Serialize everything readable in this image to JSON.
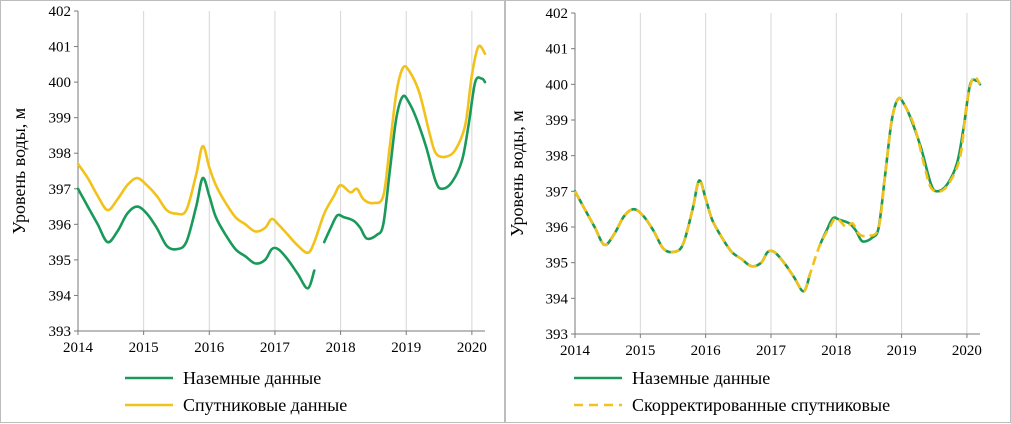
{
  "colors": {
    "ground": "#1a9a5a",
    "satellite": "#f2c21b",
    "corrected": "#f2c21b"
  },
  "chart_data": [
    {
      "type": "line",
      "ylabel": "Уровень воды, м",
      "xlabel": "",
      "xlim": [
        2014,
        2020.2
      ],
      "ylim": [
        393,
        402
      ],
      "x_ticks": [
        "2014",
        "2015",
        "2016",
        "2017",
        "2018",
        "2019",
        "2020"
      ],
      "y_ticks": [
        "393",
        "394",
        "395",
        "396",
        "397",
        "398",
        "399",
        "400",
        "401",
        "402"
      ],
      "grid": "vertical",
      "legend_position": "bottom",
      "series": [
        {
          "name": "Наземные данные",
          "color": "#1a9a5a",
          "dash": false,
          "segments": [
            [
              [
                2014.0,
                397.0
              ],
              [
                2014.15,
                396.5
              ],
              [
                2014.3,
                396.0
              ],
              [
                2014.45,
                395.5
              ],
              [
                2014.6,
                395.8
              ],
              [
                2014.75,
                396.3
              ],
              [
                2014.9,
                396.5
              ],
              [
                2015.05,
                396.3
              ],
              [
                2015.2,
                395.9
              ],
              [
                2015.35,
                395.4
              ],
              [
                2015.5,
                395.3
              ],
              [
                2015.65,
                395.5
              ],
              [
                2015.8,
                396.5
              ],
              [
                2015.9,
                397.3
              ],
              [
                2016.0,
                396.8
              ],
              [
                2016.1,
                396.2
              ],
              [
                2016.25,
                395.7
              ],
              [
                2016.4,
                395.3
              ],
              [
                2016.55,
                395.1
              ],
              [
                2016.7,
                394.9
              ],
              [
                2016.85,
                395.0
              ],
              [
                2016.95,
                395.3
              ],
              [
                2017.05,
                395.3
              ],
              [
                2017.2,
                395.0
              ],
              [
                2017.35,
                394.6
              ],
              [
                2017.5,
                394.2
              ],
              [
                2017.6,
                394.7
              ]
            ],
            [
              [
                2017.75,
                395.5
              ],
              [
                2017.85,
                395.9
              ],
              [
                2017.95,
                396.25
              ],
              [
                2018.05,
                396.2
              ],
              [
                2018.2,
                396.1
              ],
              [
                2018.3,
                395.9
              ],
              [
                2018.4,
                395.6
              ],
              [
                2018.55,
                395.7
              ],
              [
                2018.65,
                396.0
              ],
              [
                2018.75,
                397.5
              ],
              [
                2018.85,
                399.0
              ],
              [
                2018.95,
                399.6
              ],
              [
                2019.05,
                399.4
              ],
              [
                2019.15,
                399.0
              ],
              [
                2019.3,
                398.2
              ],
              [
                2019.45,
                397.2
              ],
              [
                2019.55,
                397.0
              ],
              [
                2019.7,
                397.2
              ],
              [
                2019.85,
                397.8
              ],
              [
                2019.95,
                398.8
              ],
              [
                2020.05,
                400.0
              ],
              [
                2020.15,
                400.1
              ],
              [
                2020.2,
                400.0
              ]
            ]
          ]
        },
        {
          "name": "Спутниковые данные",
          "color": "#f2c21b",
          "dash": false,
          "segments": [
            [
              [
                2014.0,
                397.7
              ],
              [
                2014.15,
                397.3
              ],
              [
                2014.3,
                396.8
              ],
              [
                2014.45,
                396.4
              ],
              [
                2014.6,
                396.7
              ],
              [
                2014.75,
                397.1
              ],
              [
                2014.9,
                397.3
              ],
              [
                2015.05,
                397.1
              ],
              [
                2015.2,
                396.8
              ],
              [
                2015.35,
                396.4
              ],
              [
                2015.5,
                396.3
              ],
              [
                2015.65,
                396.4
              ],
              [
                2015.8,
                397.4
              ],
              [
                2015.9,
                398.2
              ],
              [
                2016.0,
                397.6
              ],
              [
                2016.1,
                397.1
              ],
              [
                2016.25,
                396.6
              ],
              [
                2016.4,
                396.2
              ],
              [
                2016.55,
                396.0
              ],
              [
                2016.7,
                395.8
              ],
              [
                2016.85,
                395.9
              ],
              [
                2016.95,
                396.15
              ],
              [
                2017.05,
                396.0
              ],
              [
                2017.2,
                395.7
              ],
              [
                2017.35,
                395.4
              ],
              [
                2017.5,
                395.2
              ],
              [
                2017.6,
                395.5
              ],
              [
                2017.75,
                396.3
              ],
              [
                2017.9,
                396.8
              ],
              [
                2018.0,
                397.1
              ],
              [
                2018.15,
                396.9
              ],
              [
                2018.25,
                397.0
              ],
              [
                2018.35,
                396.7
              ],
              [
                2018.5,
                396.6
              ],
              [
                2018.65,
                396.8
              ],
              [
                2018.75,
                398.2
              ],
              [
                2018.85,
                399.7
              ],
              [
                2018.95,
                400.4
              ],
              [
                2019.05,
                400.3
              ],
              [
                2019.2,
                399.7
              ],
              [
                2019.35,
                398.6
              ],
              [
                2019.45,
                398.0
              ],
              [
                2019.6,
                397.9
              ],
              [
                2019.75,
                398.1
              ],
              [
                2019.9,
                398.8
              ],
              [
                2020.0,
                400.2
              ],
              [
                2020.1,
                401.0
              ],
              [
                2020.2,
                400.8
              ]
            ]
          ]
        }
      ],
      "legend": [
        "Наземные данные",
        "Спутниковые данные"
      ]
    },
    {
      "type": "line",
      "ylabel": "Уровень воды, м",
      "xlabel": "",
      "xlim": [
        2014,
        2020.2
      ],
      "ylim": [
        393,
        402
      ],
      "x_ticks": [
        "2014",
        "2015",
        "2016",
        "2017",
        "2018",
        "2019",
        "2020"
      ],
      "y_ticks": [
        "393",
        "394",
        "395",
        "396",
        "397",
        "398",
        "399",
        "400",
        "401",
        "402"
      ],
      "grid": "vertical",
      "legend_position": "bottom",
      "series": [
        {
          "name": "Наземные данные",
          "color": "#1a9a5a",
          "dash": false,
          "segments": [
            [
              [
                2014.0,
                397.0
              ],
              [
                2014.15,
                396.5
              ],
              [
                2014.3,
                396.0
              ],
              [
                2014.45,
                395.5
              ],
              [
                2014.6,
                395.8
              ],
              [
                2014.75,
                396.3
              ],
              [
                2014.9,
                396.5
              ],
              [
                2015.05,
                396.3
              ],
              [
                2015.2,
                395.9
              ],
              [
                2015.35,
                395.4
              ],
              [
                2015.5,
                395.3
              ],
              [
                2015.65,
                395.5
              ],
              [
                2015.8,
                396.5
              ],
              [
                2015.9,
                397.3
              ],
              [
                2016.0,
                396.8
              ],
              [
                2016.1,
                396.2
              ],
              [
                2016.25,
                395.7
              ],
              [
                2016.4,
                395.3
              ],
              [
                2016.55,
                395.1
              ],
              [
                2016.7,
                394.9
              ],
              [
                2016.85,
                395.0
              ],
              [
                2016.95,
                395.3
              ],
              [
                2017.05,
                395.3
              ],
              [
                2017.2,
                395.0
              ],
              [
                2017.35,
                394.6
              ],
              [
                2017.5,
                394.2
              ],
              [
                2017.6,
                394.7
              ]
            ],
            [
              [
                2017.75,
                395.5
              ],
              [
                2017.85,
                395.9
              ],
              [
                2017.95,
                396.25
              ],
              [
                2018.05,
                396.2
              ],
              [
                2018.2,
                396.1
              ],
              [
                2018.3,
                395.9
              ],
              [
                2018.4,
                395.6
              ],
              [
                2018.55,
                395.7
              ],
              [
                2018.65,
                396.0
              ],
              [
                2018.75,
                397.5
              ],
              [
                2018.85,
                399.0
              ],
              [
                2018.95,
                399.6
              ],
              [
                2019.05,
                399.4
              ],
              [
                2019.15,
                399.0
              ],
              [
                2019.3,
                398.2
              ],
              [
                2019.45,
                397.2
              ],
              [
                2019.55,
                397.0
              ],
              [
                2019.7,
                397.2
              ],
              [
                2019.85,
                397.8
              ],
              [
                2019.95,
                398.8
              ],
              [
                2020.05,
                400.0
              ],
              [
                2020.15,
                400.1
              ],
              [
                2020.2,
                400.0
              ]
            ]
          ]
        },
        {
          "name": "Скорректированные спутниковые",
          "color": "#f2c21b",
          "dash": true,
          "segments": [
            [
              [
                2014.0,
                397.0
              ],
              [
                2014.15,
                396.5
              ],
              [
                2014.3,
                396.0
              ],
              [
                2014.45,
                395.5
              ],
              [
                2014.6,
                395.8
              ],
              [
                2014.75,
                396.3
              ],
              [
                2014.9,
                396.5
              ],
              [
                2015.05,
                396.3
              ],
              [
                2015.2,
                395.9
              ],
              [
                2015.35,
                395.4
              ],
              [
                2015.5,
                395.3
              ],
              [
                2015.65,
                395.5
              ],
              [
                2015.8,
                396.5
              ],
              [
                2015.9,
                397.3
              ],
              [
                2016.0,
                396.8
              ],
              [
                2016.1,
                396.2
              ],
              [
                2016.25,
                395.7
              ],
              [
                2016.4,
                395.3
              ],
              [
                2016.55,
                395.1
              ],
              [
                2016.7,
                394.9
              ],
              [
                2016.85,
                395.0
              ],
              [
                2016.95,
                395.3
              ],
              [
                2017.05,
                395.3
              ],
              [
                2017.2,
                395.0
              ],
              [
                2017.35,
                394.6
              ],
              [
                2017.5,
                394.2
              ],
              [
                2017.6,
                394.7
              ],
              [
                2017.75,
                395.5
              ],
              [
                2017.9,
                396.0
              ],
              [
                2018.0,
                396.25
              ],
              [
                2018.15,
                396.0
              ],
              [
                2018.25,
                396.1
              ],
              [
                2018.35,
                395.8
              ],
              [
                2018.5,
                395.75
              ],
              [
                2018.65,
                396.0
              ],
              [
                2018.75,
                397.5
              ],
              [
                2018.85,
                399.0
              ],
              [
                2018.95,
                399.6
              ],
              [
                2019.05,
                399.4
              ],
              [
                2019.2,
                398.8
              ],
              [
                2019.35,
                397.7
              ],
              [
                2019.45,
                397.1
              ],
              [
                2019.6,
                397.0
              ],
              [
                2019.75,
                397.3
              ],
              [
                2019.9,
                398.0
              ],
              [
                2020.0,
                399.5
              ],
              [
                2020.1,
                400.2
              ],
              [
                2020.2,
                400.0
              ]
            ]
          ]
        }
      ],
      "legend": [
        "Наземные данные",
        "Скорректированные спутниковые"
      ]
    }
  ]
}
